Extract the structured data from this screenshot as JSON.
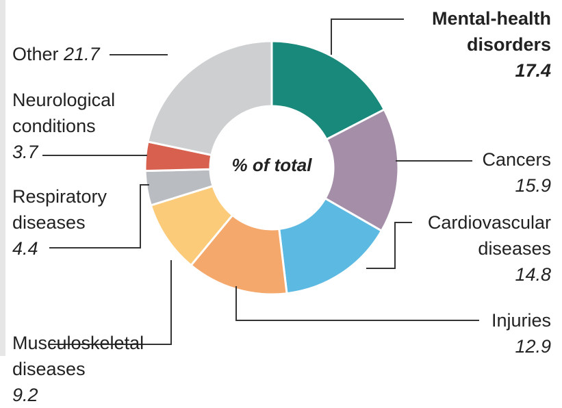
{
  "chart_data": {
    "type": "donut",
    "center_label": "% of total",
    "categories": [
      "Mental-health disorders",
      "Cancers",
      "Cardiovascular diseases",
      "Injuries",
      "Musculoskeletal diseases",
      "Respiratory diseases",
      "Neurological conditions",
      "Other"
    ],
    "values": [
      17.4,
      15.9,
      14.8,
      12.9,
      9.2,
      4.4,
      3.7,
      21.7
    ],
    "colors": [
      "#19897b",
      "#a58ea8",
      "#5cb9e2",
      "#f5a86b",
      "#fbcb79",
      "#b9bcc1",
      "#d8604f",
      "#cdcfd1"
    ]
  }
}
